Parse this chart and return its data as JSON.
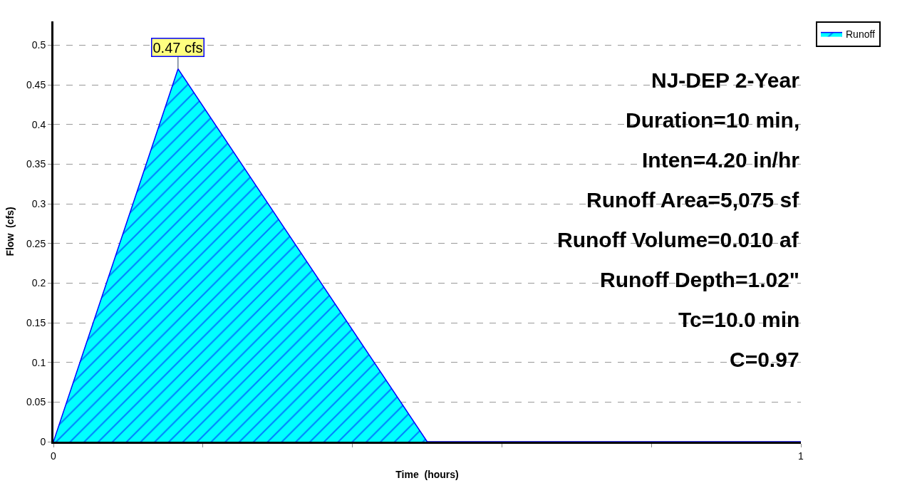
{
  "chart_data": {
    "type": "area",
    "xlabel": "Time  (hours)",
    "ylabel": "Flow  (cfs)",
    "x": [
      0,
      0.1667,
      0.5,
      1.0
    ],
    "series": [
      {
        "name": "Runoff",
        "color": "#00ffff",
        "values": [
          0,
          0.47,
          0,
          0
        ]
      }
    ],
    "annotations": [
      {
        "text": "0.47 cfs",
        "x": 0.1667,
        "y": 0.47
      },
      "NJ-DEP 2-Year",
      "Duration=10 min,",
      "Inten=4.20 in/hr",
      "Runoff Area=5,075 sf",
      "Runoff Volume=0.010 af",
      "Runoff Depth=1.02\"",
      "Tc=10.0 min",
      "C=0.97"
    ],
    "xlim": [
      0,
      1
    ],
    "ylim": [
      0,
      0.53
    ],
    "xticks": [
      0,
      {
        "value": 0.2,
        "label": null
      },
      {
        "value": 0.4,
        "label": null
      },
      {
        "value": 0.6,
        "label": null
      },
      {
        "value": 0.8,
        "label": null
      },
      1
    ],
    "yticks": [
      0,
      0.05,
      0.1,
      0.15,
      0.2,
      0.25,
      0.3,
      0.35,
      0.4,
      0.45,
      0.5
    ],
    "grid": "y",
    "legend": "top right"
  }
}
